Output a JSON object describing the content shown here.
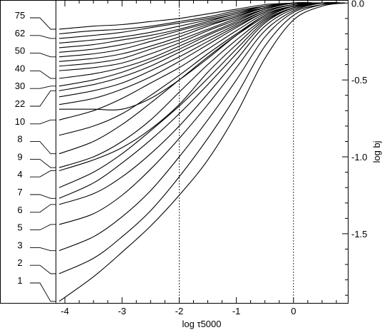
{
  "chart_data": {
    "type": "line",
    "title": "",
    "xlabel": "log τ5000",
    "ylabel": "log bj",
    "xlim": [
      -4.15,
      0.95
    ],
    "ylim": [
      -1.95,
      0.02
    ],
    "x_ticks": [
      -4,
      -3,
      -2,
      -1,
      0
    ],
    "x_tick_labels": [
      "-4",
      "-3",
      "-2",
      "-1",
      "0"
    ],
    "y_ticks": [
      0.0,
      -0.5,
      -1.0,
      -1.5
    ],
    "y_tick_labels": [
      "0.0",
      "-0.5",
      "-1.0",
      "-1.5"
    ],
    "vertical_reference_lines": [
      -2,
      0
    ],
    "grid": false,
    "level_labels": [
      "75",
      "62",
      "50",
      "40",
      "30",
      "22",
      "10",
      "8",
      "9",
      "4",
      "7",
      "6",
      "5",
      "3",
      "2",
      "1"
    ],
    "level_start_values": [
      -0.17,
      -0.23,
      -0.35,
      -0.49,
      -0.54,
      -0.57,
      -0.76,
      -0.98,
      -1.07,
      -1.09,
      -1.27,
      -1.31,
      -1.44,
      -1.61,
      -1.76,
      -1.94
    ],
    "series": [
      {
        "x": [
          -4.1,
          -3.5,
          -3,
          -2.5,
          -2,
          -1.5,
          -1,
          -0.5,
          0,
          0.5,
          0.9
        ],
        "y": [
          -0.17,
          -0.15,
          -0.14,
          -0.12,
          -0.1,
          -0.07,
          -0.04,
          -0.01,
          0,
          0,
          0
        ]
      },
      {
        "x": [
          -4.1,
          -3.5,
          -3,
          -2.5,
          -2,
          -1.5,
          -1,
          -0.5,
          0,
          0.5,
          0.9
        ],
        "y": [
          -0.2,
          -0.18,
          -0.17,
          -0.15,
          -0.12,
          -0.09,
          -0.05,
          -0.02,
          0,
          0,
          0
        ]
      },
      {
        "x": [
          -4.1,
          -3.5,
          -3,
          -2.5,
          -2,
          -1.5,
          -1,
          -0.5,
          0,
          0.5,
          0.9
        ],
        "y": [
          -0.23,
          -0.21,
          -0.19,
          -0.16,
          -0.13,
          -0.1,
          -0.06,
          -0.02,
          0,
          0,
          0
        ]
      },
      {
        "x": [
          -4.1,
          -3.5,
          -3,
          -2.5,
          -2,
          -1.5,
          -1,
          -0.5,
          0,
          0.5,
          0.9
        ],
        "y": [
          -0.26,
          -0.24,
          -0.22,
          -0.19,
          -0.15,
          -0.11,
          -0.07,
          -0.02,
          0,
          0,
          0
        ]
      },
      {
        "x": [
          -4.1,
          -3.5,
          -3,
          -2.5,
          -2,
          -1.5,
          -1,
          -0.5,
          0,
          0.5,
          0.9
        ],
        "y": [
          -0.29,
          -0.27,
          -0.24,
          -0.21,
          -0.17,
          -0.12,
          -0.07,
          -0.03,
          0,
          0,
          0
        ]
      },
      {
        "x": [
          -4.1,
          -3.5,
          -3,
          -2.5,
          -2,
          -1.5,
          -1,
          -0.5,
          0,
          0.5,
          0.9
        ],
        "y": [
          -0.32,
          -0.3,
          -0.27,
          -0.23,
          -0.18,
          -0.13,
          -0.08,
          -0.03,
          0,
          0,
          0
        ]
      },
      {
        "x": [
          -4.1,
          -3.5,
          -3,
          -2.5,
          -2,
          -1.5,
          -1,
          -0.5,
          0,
          0.5,
          0.9
        ],
        "y": [
          -0.35,
          -0.33,
          -0.3,
          -0.25,
          -0.2,
          -0.14,
          -0.09,
          -0.03,
          0,
          0,
          0
        ]
      },
      {
        "x": [
          -4.1,
          -3.5,
          -3,
          -2.5,
          -2,
          -1.5,
          -1,
          -0.5,
          0,
          0.5,
          0.9
        ],
        "y": [
          -0.38,
          -0.36,
          -0.33,
          -0.28,
          -0.22,
          -0.15,
          -0.09,
          -0.03,
          0,
          0,
          0
        ]
      },
      {
        "x": [
          -4.1,
          -3.5,
          -3,
          -2.5,
          -2,
          -1.5,
          -1,
          -0.5,
          0,
          0.5,
          0.9
        ],
        "y": [
          -0.41,
          -0.39,
          -0.36,
          -0.3,
          -0.24,
          -0.17,
          -0.1,
          -0.04,
          0,
          0,
          0
        ]
      },
      {
        "x": [
          -4.1,
          -3.5,
          -3,
          -2.5,
          -2,
          -1.5,
          -1,
          -0.5,
          0,
          0.5,
          0.9
        ],
        "y": [
          -0.44,
          -0.42,
          -0.39,
          -0.33,
          -0.26,
          -0.18,
          -0.11,
          -0.04,
          0,
          0,
          0
        ]
      },
      {
        "x": [
          -4.1,
          -3.5,
          -3,
          -2.5,
          -2,
          -1.5,
          -1,
          -0.5,
          0,
          0.5,
          0.9
        ],
        "y": [
          -0.49,
          -0.46,
          -0.42,
          -0.36,
          -0.28,
          -0.2,
          -0.12,
          -0.04,
          0,
          0,
          0
        ]
      },
      {
        "x": [
          -4.1,
          -3.5,
          -3,
          -2.5,
          -2,
          -1.5,
          -1,
          -0.5,
          0,
          0.5,
          0.9
        ],
        "y": [
          -0.54,
          -0.5,
          -0.45,
          -0.38,
          -0.3,
          -0.21,
          -0.13,
          -0.05,
          -0.01,
          0,
          0
        ]
      },
      {
        "x": [
          -4.1,
          -3.5,
          -3,
          -2.5,
          -2,
          -1.5,
          -1,
          -0.5,
          0,
          0.5,
          0.9
        ],
        "y": [
          -0.57,
          -0.53,
          -0.48,
          -0.41,
          -0.32,
          -0.23,
          -0.14,
          -0.05,
          -0.01,
          0,
          0
        ]
      },
      {
        "x": [
          -4.1,
          -3.5,
          -3,
          -2.5,
          -2,
          -1.5,
          -1,
          -0.5,
          0,
          0.5,
          0.9
        ],
        "y": [
          -0.61,
          -0.57,
          -0.52,
          -0.44,
          -0.35,
          -0.25,
          -0.15,
          -0.06,
          -0.01,
          0,
          0
        ]
      },
      {
        "x": [
          -4.1,
          -3.5,
          -3,
          -2.5,
          -2,
          -1.5,
          -1,
          -0.5,
          0,
          0.5,
          0.9
        ],
        "y": [
          -0.66,
          -0.62,
          -0.56,
          -0.48,
          -0.38,
          -0.27,
          -0.16,
          -0.06,
          -0.01,
          0,
          0
        ]
      },
      {
        "x": [
          -4.1,
          -3.5,
          -3,
          -2.5,
          -2,
          -1.5,
          -1,
          -0.5,
          0,
          0.5,
          0.9
        ],
        "y": [
          -0.69,
          -0.69,
          -0.69,
          -0.62,
          -0.5,
          -0.36,
          -0.21,
          -0.08,
          -0.02,
          0,
          0
        ]
      },
      {
        "x": [
          -4.1,
          -3.5,
          -3,
          -2.5,
          -2,
          -1.5,
          -1,
          -0.5,
          0,
          0.5,
          0.9
        ],
        "y": [
          -0.76,
          -0.7,
          -0.62,
          -0.52,
          -0.42,
          -0.3,
          -0.18,
          -0.07,
          -0.02,
          0,
          0
        ]
      },
      {
        "x": [
          -4.1,
          -3.5,
          -3,
          -2.5,
          -2,
          -1.5,
          -1,
          -0.5,
          0,
          0.5,
          0.9
        ],
        "y": [
          -0.86,
          -0.8,
          -0.72,
          -0.6,
          -0.47,
          -0.33,
          -0.2,
          -0.08,
          -0.02,
          0,
          0
        ]
      },
      {
        "x": [
          -4.1,
          -3.5,
          -3,
          -2.5,
          -2,
          -1.5,
          -1,
          -0.5,
          0,
          0.5,
          0.9
        ],
        "y": [
          -0.98,
          -0.9,
          -0.79,
          -0.65,
          -0.5,
          -0.35,
          -0.21,
          -0.09,
          -0.02,
          0,
          0
        ]
      },
      {
        "x": [
          -4.1,
          -3.5,
          -3,
          -2.5,
          -2,
          -1.5,
          -1,
          -0.5,
          0,
          0.5,
          0.9
        ],
        "y": [
          -1.07,
          -1.0,
          -0.9,
          -0.76,
          -0.58,
          -0.4,
          -0.24,
          -0.1,
          -0.02,
          0,
          0
        ]
      },
      {
        "x": [
          -4.1,
          -3.5,
          -3,
          -2.5,
          -2,
          -1.5,
          -1,
          -0.5,
          0,
          0.5,
          0.9
        ],
        "y": [
          -1.09,
          -1.02,
          -0.94,
          -0.82,
          -0.66,
          -0.45,
          -0.27,
          -0.11,
          -0.03,
          0,
          0
        ]
      },
      {
        "x": [
          -4.1,
          -3.5,
          -3,
          -2.5,
          -2,
          -1.5,
          -1,
          -0.5,
          0,
          0.5,
          0.9
        ],
        "y": [
          -1.2,
          -1.1,
          -0.98,
          -0.83,
          -0.67,
          -0.49,
          -0.3,
          -0.12,
          -0.03,
          0,
          0
        ]
      },
      {
        "x": [
          -4.1,
          -3.5,
          -3,
          -2.5,
          -2,
          -1.5,
          -1,
          -0.5,
          0,
          0.5,
          0.9
        ],
        "y": [
          -1.27,
          -1.17,
          -1.04,
          -0.89,
          -0.72,
          -0.53,
          -0.33,
          -0.13,
          -0.03,
          0,
          0
        ]
      },
      {
        "x": [
          -4.1,
          -3.5,
          -3,
          -2.5,
          -2,
          -1.5,
          -1,
          -0.5,
          0,
          0.5,
          0.9
        ],
        "y": [
          -1.31,
          -1.24,
          -1.13,
          -0.98,
          -0.8,
          -0.59,
          -0.37,
          -0.15,
          -0.04,
          0,
          0
        ]
      },
      {
        "x": [
          -4.1,
          -3.5,
          -3,
          -2.5,
          -2,
          -1.5,
          -1,
          -0.5,
          0,
          0.5,
          0.9
        ],
        "y": [
          -1.44,
          -1.37,
          -1.25,
          -1.08,
          -0.88,
          -0.66,
          -0.42,
          -0.18,
          -0.05,
          0,
          0
        ]
      },
      {
        "x": [
          -4.1,
          -3.5,
          -3,
          -2.5,
          -2,
          -1.5,
          -1,
          -0.5,
          0,
          0.5,
          0.9
        ],
        "y": [
          -1.61,
          -1.52,
          -1.39,
          -1.22,
          -1.0,
          -0.76,
          -0.5,
          -0.22,
          -0.06,
          -0.01,
          0
        ]
      },
      {
        "x": [
          -4.1,
          -3.5,
          -3,
          -2.5,
          -2,
          -1.5,
          -1,
          -0.5,
          0,
          0.5,
          0.9
        ],
        "y": [
          -1.76,
          -1.66,
          -1.52,
          -1.35,
          -1.13,
          -0.88,
          -0.6,
          -0.28,
          -0.08,
          -0.01,
          0
        ]
      },
      {
        "x": [
          -4.1,
          -3.5,
          -3,
          -2.5,
          -2,
          -1.5,
          -1,
          -0.5,
          0,
          0.5,
          0.9
        ],
        "y": [
          -1.94,
          -1.78,
          -1.62,
          -1.45,
          -1.25,
          -1.02,
          -0.72,
          -0.36,
          -0.11,
          -0.02,
          0
        ]
      }
    ]
  }
}
